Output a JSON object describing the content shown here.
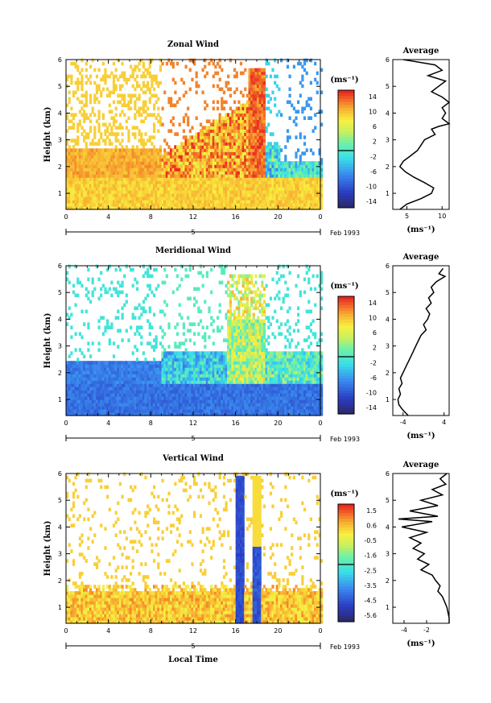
{
  "chart_data": [
    {
      "type": "heatmap",
      "title": "Zonal Wind",
      "ylabel": "Height (km)",
      "xticks": [
        "0",
        "4",
        "8",
        "12",
        "16",
        "20",
        "0"
      ],
      "yticks": [
        "1",
        "2",
        "3",
        "4",
        "5",
        "6"
      ],
      "xlim": [
        0,
        24
      ],
      "ylim": [
        0.4,
        6.0
      ],
      "date_label": "5",
      "month_label": "Feb 1993",
      "colorbar": {
        "unit": "(ms⁻¹)",
        "ticks": [
          "14",
          "10",
          "6",
          "2",
          "-2",
          "-6",
          "-10",
          "-14"
        ],
        "range": [
          -14,
          14
        ]
      },
      "average": {
        "title": "Average",
        "xlabel": "(ms⁻¹)",
        "xticks": [
          "5",
          "10"
        ],
        "xlim": [
          3,
          11
        ],
        "profile": [
          [
            4.5,
            6.0
          ],
          [
            9.0,
            5.8
          ],
          [
            10.0,
            5.6
          ],
          [
            8.0,
            5.4
          ],
          [
            10.5,
            5.2
          ],
          [
            9.5,
            5.0
          ],
          [
            8.5,
            4.8
          ],
          [
            10.0,
            4.6
          ],
          [
            11.0,
            4.4
          ],
          [
            10.0,
            4.2
          ],
          [
            10.5,
            4.0
          ],
          [
            10.0,
            3.8
          ],
          [
            11.0,
            3.6
          ],
          [
            9.5,
            3.5
          ],
          [
            8.5,
            3.4
          ],
          [
            9.0,
            3.2
          ],
          [
            7.5,
            3.0
          ],
          [
            7.0,
            2.8
          ],
          [
            6.5,
            2.6
          ],
          [
            5.5,
            2.4
          ],
          [
            4.5,
            2.2
          ],
          [
            4.0,
            2.0
          ],
          [
            4.8,
            1.8
          ],
          [
            6.0,
            1.6
          ],
          [
            7.5,
            1.4
          ],
          [
            8.8,
            1.2
          ],
          [
            8.5,
            1.0
          ],
          [
            7.0,
            0.8
          ],
          [
            5.0,
            0.6
          ],
          [
            4.0,
            0.4
          ]
        ]
      }
    },
    {
      "type": "heatmap",
      "title": "Meridional Wind",
      "ylabel": "Height (km)",
      "xticks": [
        "0",
        "4",
        "8",
        "12",
        "16",
        "20",
        "0"
      ],
      "yticks": [
        "1",
        "2",
        "3",
        "4",
        "5",
        "6"
      ],
      "xlim": [
        0,
        24
      ],
      "ylim": [
        0.4,
        6.0
      ],
      "date_label": "5",
      "month_label": "Feb 1993",
      "colorbar": {
        "unit": "(ms⁻¹)",
        "ticks": [
          "14",
          "10",
          "6",
          "2",
          "-2",
          "-6",
          "-10",
          "-14"
        ],
        "range": [
          -14,
          14
        ]
      },
      "average": {
        "title": "Average",
        "xlabel": "(ms⁻¹)",
        "xticks": [
          "-4",
          "4"
        ],
        "xlim": [
          -6,
          5
        ],
        "profile": [
          [
            3.8,
            5.9
          ],
          [
            3.0,
            5.7
          ],
          [
            4.2,
            5.6
          ],
          [
            2.5,
            5.4
          ],
          [
            1.5,
            5.2
          ],
          [
            2.0,
            5.0
          ],
          [
            1.0,
            4.8
          ],
          [
            1.5,
            4.6
          ],
          [
            0.5,
            4.4
          ],
          [
            1.2,
            4.2
          ],
          [
            0.8,
            4.0
          ],
          [
            0.0,
            3.8
          ],
          [
            0.5,
            3.6
          ],
          [
            -0.5,
            3.4
          ],
          [
            -1.0,
            3.2
          ],
          [
            -1.5,
            3.0
          ],
          [
            -2.0,
            2.8
          ],
          [
            -2.5,
            2.6
          ],
          [
            -3.0,
            2.4
          ],
          [
            -3.5,
            2.2
          ],
          [
            -4.0,
            2.0
          ],
          [
            -4.5,
            1.8
          ],
          [
            -4.2,
            1.6
          ],
          [
            -4.8,
            1.4
          ],
          [
            -4.5,
            1.2
          ],
          [
            -5.0,
            1.0
          ],
          [
            -4.8,
            0.8
          ],
          [
            -4.0,
            0.6
          ],
          [
            -3.0,
            0.4
          ]
        ]
      }
    },
    {
      "type": "heatmap",
      "title": "Vertical Wind",
      "ylabel": "Height (km)",
      "xlabel": "Local Time",
      "xticks": [
        "0",
        "4",
        "8",
        "12",
        "16",
        "20",
        "0"
      ],
      "yticks": [
        "1",
        "2",
        "3",
        "4",
        "5",
        "6"
      ],
      "xlim": [
        0,
        24
      ],
      "ylim": [
        0.4,
        6.0
      ],
      "date_label": "5",
      "month_label": "Feb 1993",
      "colorbar": {
        "unit": "(ms⁻¹)",
        "ticks": [
          "1.5",
          "0.6",
          "-0.5",
          "-1.6",
          "-2.5",
          "-3.5",
          "-4.5",
          "-5.6"
        ],
        "range": [
          -5.6,
          1.5
        ]
      },
      "average": {
        "title": "Average",
        "xlabel": "(ms⁻¹)",
        "xticks": [
          "-4",
          "-2"
        ],
        "xlim": [
          -5,
          0
        ],
        "profile": [
          [
            -0.2,
            6.0
          ],
          [
            -0.8,
            5.8
          ],
          [
            -0.3,
            5.6
          ],
          [
            -1.5,
            5.4
          ],
          [
            -0.6,
            5.2
          ],
          [
            -2.5,
            5.0
          ],
          [
            -1.0,
            4.8
          ],
          [
            -3.5,
            4.6
          ],
          [
            -1.0,
            4.4
          ],
          [
            -4.5,
            4.3
          ],
          [
            -1.5,
            4.2
          ],
          [
            -4.2,
            4.0
          ],
          [
            -2.0,
            3.8
          ],
          [
            -3.5,
            3.6
          ],
          [
            -2.5,
            3.4
          ],
          [
            -3.2,
            3.2
          ],
          [
            -2.2,
            3.0
          ],
          [
            -2.8,
            2.8
          ],
          [
            -1.8,
            2.6
          ],
          [
            -2.5,
            2.4
          ],
          [
            -1.5,
            2.2
          ],
          [
            -1.2,
            2.0
          ],
          [
            -0.8,
            1.8
          ],
          [
            -1.0,
            1.6
          ],
          [
            -0.6,
            1.4
          ],
          [
            -0.4,
            1.2
          ],
          [
            -0.2,
            1.0
          ],
          [
            -0.1,
            0.8
          ],
          [
            0.0,
            0.6
          ],
          [
            0.0,
            0.4
          ]
        ]
      }
    }
  ]
}
